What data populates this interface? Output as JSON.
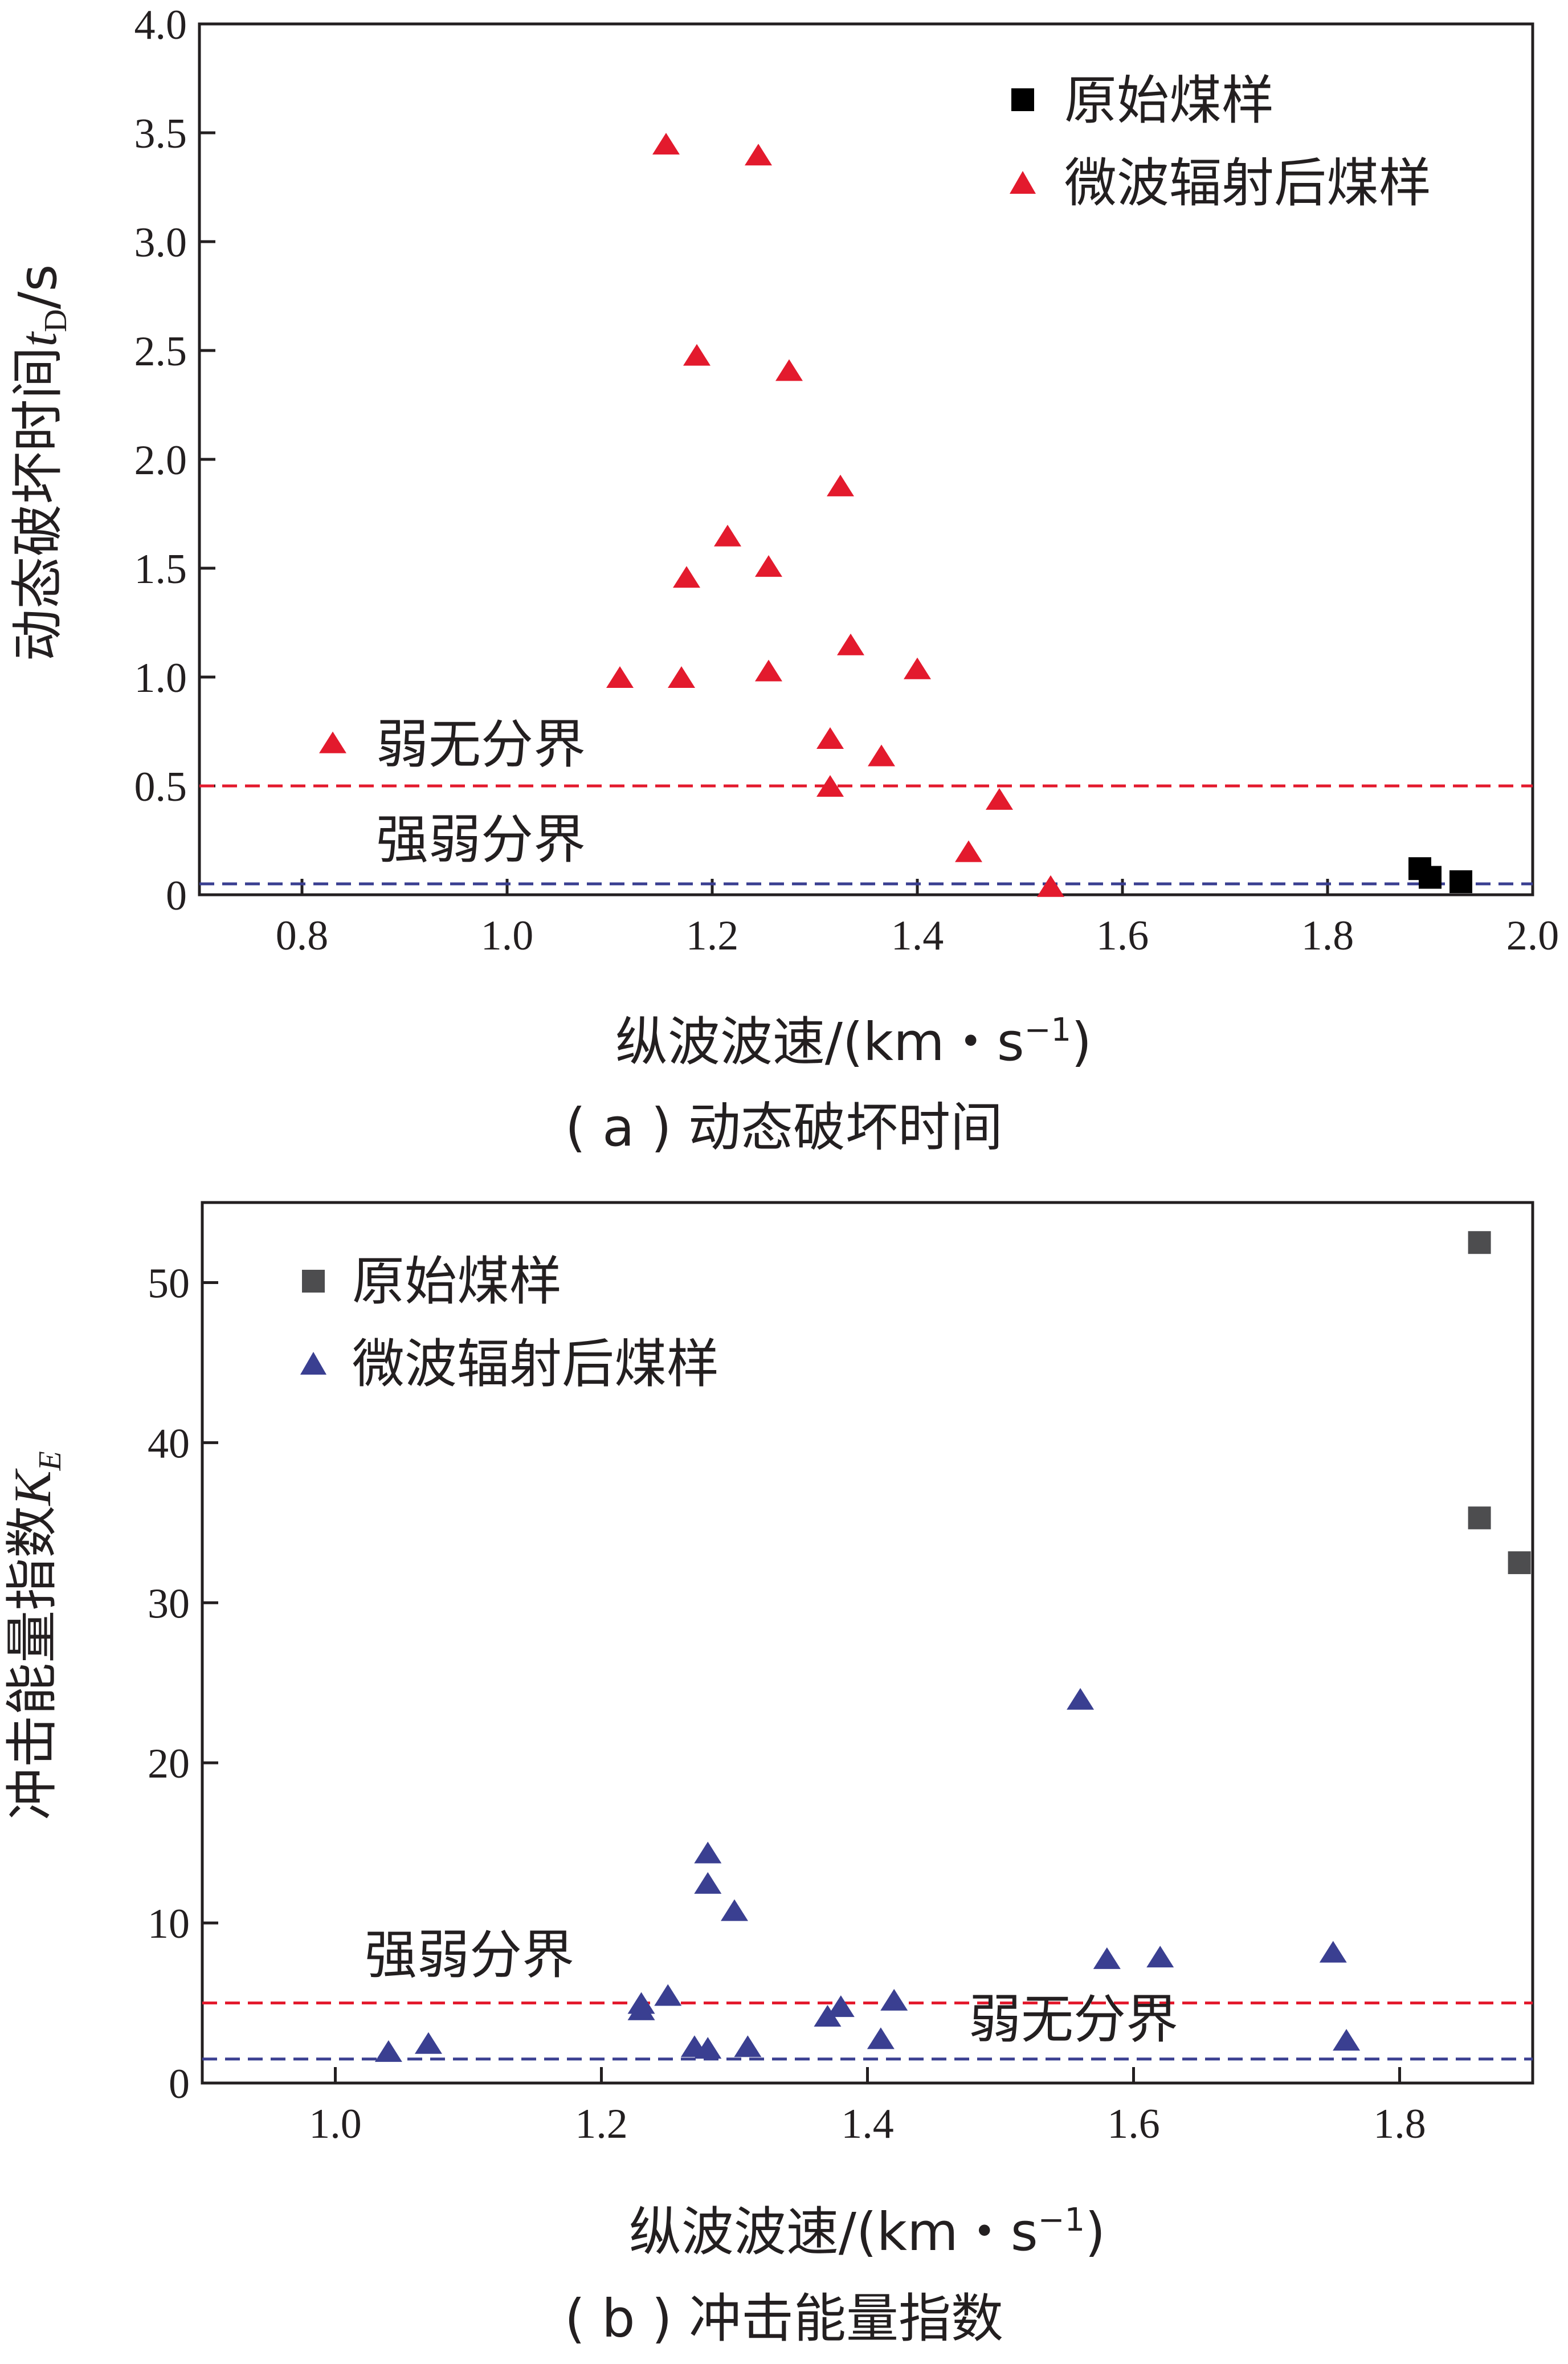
{
  "chart_data": [
    {
      "type": "scatter",
      "xlabel": "纵波波速/(km・s⁻¹)",
      "ylabel": "动态破坏时间tD/s",
      "caption": "( a ) 动态破坏时间",
      "xlim": [
        0.7,
        2.0
      ],
      "ylim": [
        0,
        4.0
      ],
      "x_ticks": [
        "0.8",
        "1.0",
        "1.2",
        "1.4",
        "1.6",
        "1.8",
        "2.0"
      ],
      "y_ticks": [
        "0",
        "0.5",
        "1.0",
        "1.5",
        "2.0",
        "2.5",
        "3.0",
        "3.5",
        "4.0"
      ],
      "legend_position": "top-right",
      "series": [
        {
          "name": "原始煤样",
          "marker": "square",
          "color": "#000000",
          "x": [
            1.89,
            1.9,
            1.93
          ],
          "y": [
            0.12,
            0.08,
            0.06
          ]
        },
        {
          "name": "微波辐射后煤样",
          "marker": "triangle",
          "color": "#e31a2d",
          "x": [
            0.83,
            1.11,
            1.155,
            1.17,
            1.175,
            1.185,
            1.215,
            1.245,
            1.255,
            1.255,
            1.275,
            1.315,
            1.315,
            1.325,
            1.335,
            1.365,
            1.4,
            1.45,
            1.48,
            1.53
          ],
          "y": [
            0.7,
            1.0,
            3.45,
            1.0,
            1.46,
            2.48,
            1.65,
            3.4,
            1.51,
            1.03,
            2.41,
            0.72,
            0.5,
            1.88,
            1.15,
            0.64,
            1.04,
            0.2,
            0.44,
            0.04
          ]
        }
      ],
      "reference_lines": [
        {
          "y": 0.5,
          "color": "#e31a2d",
          "style": "dashed",
          "label": "弱无分界"
        },
        {
          "y": 0.05,
          "color": "#3a3f91",
          "style": "dashed",
          "label": "强弱分界"
        }
      ]
    },
    {
      "type": "scatter",
      "xlabel": "纵波波速/(km・s⁻¹)",
      "ylabel": "冲击能量指数KE",
      "caption": "( b ) 冲击能量指数",
      "xlim": [
        0.9,
        1.9
      ],
      "ylim": [
        0,
        55
      ],
      "x_ticks": [
        "1.0",
        "1.2",
        "1.4",
        "1.6",
        "1.8"
      ],
      "y_ticks": [
        "0",
        "10",
        "20",
        "30",
        "40",
        "50"
      ],
      "legend_position": "top-left",
      "series": [
        {
          "name": "原始煤样",
          "marker": "square",
          "color": "#4d4d4f",
          "x": [
            1.86,
            1.86,
            1.89
          ],
          "y": [
            52.5,
            35.3,
            32.5
          ]
        },
        {
          "name": "微波辐射后煤样",
          "marker": "triangle",
          "color": "#3a3f91",
          "x": [
            1.04,
            1.07,
            1.23,
            1.23,
            1.25,
            1.27,
            1.28,
            1.28,
            1.28,
            1.3,
            1.31,
            1.37,
            1.38,
            1.41,
            1.42,
            1.56,
            1.58,
            1.62,
            1.75,
            1.76
          ],
          "y": [
            2.0,
            2.5,
            4.6,
            5.0,
            5.5,
            2.3,
            2.2,
            14.4,
            12.5,
            10.8,
            2.3,
            4.2,
            4.8,
            2.8,
            5.2,
            24.0,
            7.8,
            7.9,
            8.2,
            2.7
          ]
        }
      ],
      "reference_lines": [
        {
          "y": 5.0,
          "color": "#e31a2d",
          "style": "dashed",
          "label": "强弱分界"
        },
        {
          "y": 1.5,
          "color": "#3a3f91",
          "style": "dashed",
          "label": "弱无分界"
        }
      ]
    }
  ]
}
